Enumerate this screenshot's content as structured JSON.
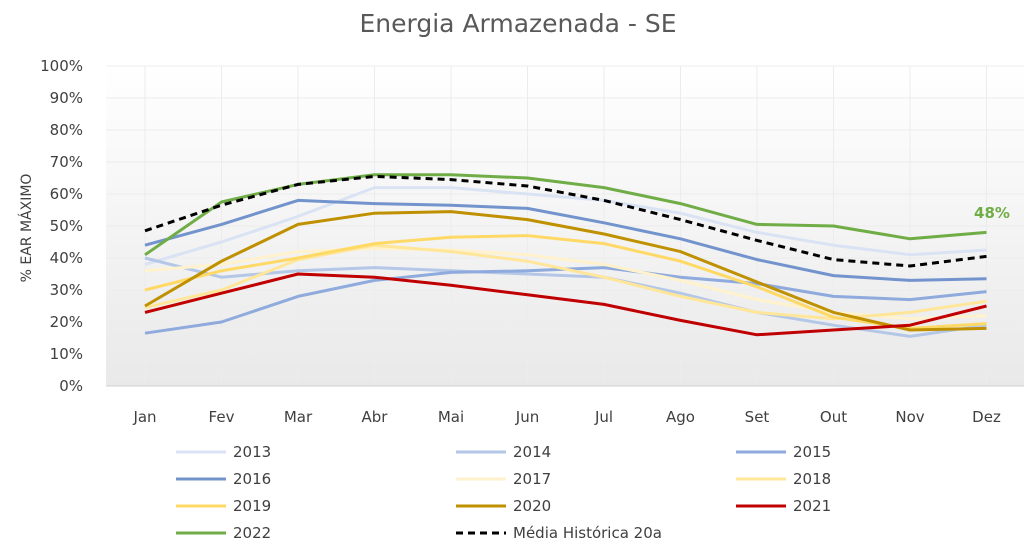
{
  "chart_data": {
    "type": "line",
    "title": "Energia Armazenada  - SE",
    "ylabel": "% EAR MÁXIMO",
    "xlabel": "",
    "ylim": [
      0,
      100
    ],
    "y_ticks": [
      "0%",
      "10%",
      "20%",
      "30%",
      "40%",
      "50%",
      "60%",
      "70%",
      "80%",
      "90%",
      "100%"
    ],
    "categories": [
      "Jan",
      "Fev",
      "Mar",
      "Abr",
      "Mai",
      "Jun",
      "Jul",
      "Ago",
      "Set",
      "Out",
      "Nov",
      "Dez"
    ],
    "legend_position": "bottom",
    "annotation": {
      "text": "48%",
      "color": "#70ad47"
    },
    "series": [
      {
        "name": "2013",
        "color": "#dae3f3",
        "dashed": false,
        "values": [
          38,
          45,
          53,
          62,
          62,
          60,
          58,
          54,
          48,
          44,
          41,
          42.5
        ]
      },
      {
        "name": "2014",
        "color": "#b4c7e7",
        "dashed": false,
        "values": [
          40,
          34,
          36,
          37,
          36,
          35,
          34,
          29,
          23,
          19,
          15.5,
          19
        ]
      },
      {
        "name": "2015",
        "color": "#8faadc",
        "dashed": false,
        "values": [
          16.5,
          20,
          28,
          33,
          35.5,
          36,
          37,
          34,
          32,
          28,
          27,
          29.5
        ]
      },
      {
        "name": "2016",
        "color": "#7393cd",
        "dashed": false,
        "values": [
          44,
          50.5,
          58,
          57,
          56.5,
          55.5,
          51,
          46,
          39.5,
          34.5,
          33,
          33.5
        ]
      },
      {
        "name": "2017",
        "color": "#fff2cc",
        "dashed": false,
        "values": [
          36,
          38,
          42,
          43,
          42.5,
          41,
          38,
          33,
          27,
          23,
          21,
          22
        ]
      },
      {
        "name": "2018",
        "color": "#ffe699",
        "dashed": false,
        "values": [
          24.5,
          30,
          39.5,
          44,
          42,
          39,
          34,
          28,
          23,
          21,
          23,
          26.5
        ]
      },
      {
        "name": "2019",
        "color": "#ffd966",
        "dashed": false,
        "values": [
          30,
          36,
          40,
          44.5,
          46.5,
          47,
          44.5,
          39,
          31,
          21.5,
          18,
          19.5
        ]
      },
      {
        "name": "2020",
        "color": "#bf9000",
        "dashed": false,
        "values": [
          25,
          39,
          50.5,
          54,
          54.5,
          52,
          47.5,
          42,
          32.5,
          23,
          17.5,
          18
        ]
      },
      {
        "name": "2021",
        "color": "#c00000",
        "dashed": false,
        "values": [
          23,
          29,
          35,
          34,
          31.5,
          28.5,
          25.5,
          20.5,
          16,
          17.5,
          19,
          25
        ]
      },
      {
        "name": "2022",
        "color": "#70ad47",
        "dashed": false,
        "values": [
          41,
          57.5,
          63,
          66,
          66,
          65,
          62,
          57,
          50.5,
          50,
          46,
          48
        ]
      },
      {
        "name": "Média Histórica 20a",
        "color": "#000000",
        "dashed": true,
        "values": [
          48.5,
          56.5,
          63,
          65.5,
          64.5,
          62.5,
          58,
          52,
          45.5,
          39.5,
          37.5,
          40.5
        ]
      }
    ]
  }
}
